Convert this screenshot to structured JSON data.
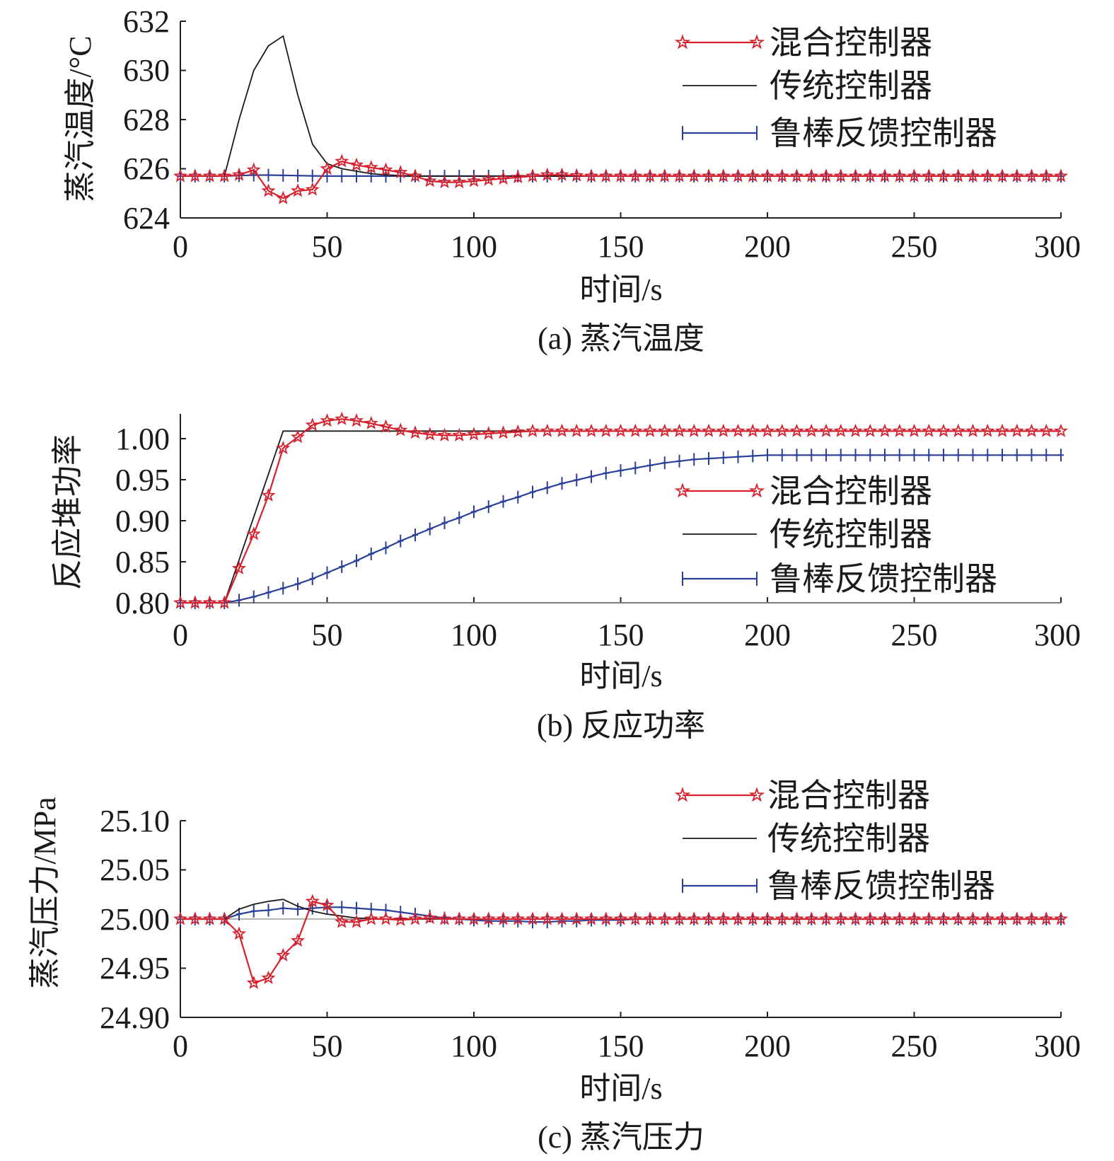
{
  "chart_data": [
    {
      "type": "line",
      "caption": "(a) 蒸汽温度",
      "xlabel": "时间/s",
      "ylabel": "蒸汽温度/°C",
      "xlim": [
        0,
        300
      ],
      "ylim": [
        624,
        632
      ],
      "xticks": [
        "0",
        "50",
        "100",
        "150",
        "200",
        "250",
        "300"
      ],
      "yticks": [
        "624",
        "626",
        "628",
        "630",
        "632"
      ],
      "legend_position": "top-right",
      "series": [
        {
          "name": "混合控制器",
          "color": "#d6202c",
          "marker": "star",
          "x": [
            0,
            5,
            10,
            15,
            20,
            25,
            30,
            35,
            40,
            45,
            50,
            55,
            60,
            65,
            70,
            75,
            80,
            85,
            90,
            95,
            100,
            105,
            110,
            115,
            120,
            125,
            130,
            135,
            140,
            145,
            150,
            155,
            160,
            165,
            170,
            175,
            180,
            185,
            190,
            195,
            200,
            205,
            210,
            215,
            220,
            225,
            230,
            235,
            240,
            245,
            250,
            255,
            260,
            265,
            270,
            275,
            280,
            285,
            290,
            295,
            300
          ],
          "y": [
            625.7,
            625.7,
            625.7,
            625.7,
            625.75,
            625.95,
            625.1,
            624.8,
            625.1,
            625.15,
            626.0,
            626.3,
            626.15,
            626.05,
            625.95,
            625.85,
            625.7,
            625.5,
            625.45,
            625.45,
            625.5,
            625.55,
            625.6,
            625.65,
            625.7,
            625.75,
            625.75,
            625.72,
            625.7,
            625.7,
            625.7,
            625.7,
            625.7,
            625.7,
            625.7,
            625.7,
            625.7,
            625.7,
            625.7,
            625.7,
            625.7,
            625.7,
            625.7,
            625.7,
            625.7,
            625.7,
            625.7,
            625.7,
            625.7,
            625.7,
            625.7,
            625.7,
            625.7,
            625.7,
            625.7,
            625.7,
            625.7,
            625.7,
            625.7,
            625.7,
            625.7
          ]
        },
        {
          "name": "传统控制器",
          "color": "#1a1a1a",
          "marker": "none",
          "x": [
            0,
            15,
            20,
            25,
            30,
            35,
            40,
            45,
            50,
            55,
            60,
            65,
            70,
            75,
            80,
            90,
            100,
            120,
            150,
            200,
            250,
            300
          ],
          "y": [
            625.7,
            625.7,
            628.0,
            630.0,
            631.0,
            631.4,
            629.0,
            627.0,
            626.2,
            626.0,
            625.9,
            625.8,
            625.75,
            625.72,
            625.7,
            625.7,
            625.7,
            625.7,
            625.7,
            625.7,
            625.7,
            625.7
          ]
        },
        {
          "name": "鲁棒反馈控制器",
          "color": "#2a3f9a",
          "marker": "plus",
          "x": [
            0,
            5,
            10,
            15,
            20,
            25,
            30,
            35,
            40,
            45,
            50,
            55,
            60,
            65,
            70,
            75,
            80,
            85,
            90,
            95,
            100,
            105,
            110,
            115,
            120,
            125,
            130,
            135,
            140,
            145,
            150,
            155,
            160,
            165,
            170,
            175,
            180,
            185,
            190,
            195,
            200,
            205,
            210,
            215,
            220,
            225,
            230,
            235,
            240,
            245,
            250,
            255,
            260,
            265,
            270,
            275,
            280,
            285,
            290,
            295,
            300
          ],
          "y": [
            625.7,
            625.7,
            625.7,
            625.7,
            625.72,
            625.74,
            625.74,
            625.73,
            625.72,
            625.71,
            625.7,
            625.7,
            625.7,
            625.7,
            625.7,
            625.7,
            625.7,
            625.7,
            625.7,
            625.7,
            625.7,
            625.7,
            625.7,
            625.7,
            625.7,
            625.7,
            625.7,
            625.7,
            625.7,
            625.7,
            625.7,
            625.7,
            625.7,
            625.7,
            625.7,
            625.7,
            625.7,
            625.7,
            625.7,
            625.7,
            625.7,
            625.7,
            625.7,
            625.7,
            625.7,
            625.7,
            625.7,
            625.7,
            625.7,
            625.7,
            625.7,
            625.7,
            625.7,
            625.7,
            625.7,
            625.7,
            625.7,
            625.7,
            625.7,
            625.7,
            625.7
          ]
        }
      ]
    },
    {
      "type": "line",
      "caption": "(b) 反应功率",
      "xlabel": "时间/s",
      "ylabel": "反应堆功率",
      "xlim": [
        0,
        300
      ],
      "ylim": [
        0.8,
        1.02
      ],
      "baseline": 0.8,
      "xticks": [
        "0",
        "50",
        "100",
        "150",
        "200",
        "250",
        "300"
      ],
      "yticks": [
        "0.80",
        "0.85",
        "0.90",
        "0.95",
        "1.00"
      ],
      "legend_position": "center-right",
      "series": [
        {
          "name": "混合控制器",
          "color": "#d6202c",
          "marker": "star",
          "x": [
            0,
            5,
            10,
            15,
            20,
            25,
            30,
            35,
            40,
            45,
            50,
            55,
            60,
            65,
            70,
            75,
            80,
            85,
            90,
            95,
            100,
            105,
            110,
            115,
            120,
            125,
            130,
            135,
            140,
            145,
            150,
            155,
            160,
            165,
            170,
            175,
            180,
            185,
            190,
            195,
            200,
            205,
            210,
            215,
            220,
            225,
            230,
            235,
            240,
            245,
            250,
            255,
            260,
            265,
            270,
            275,
            280,
            285,
            290,
            295,
            300
          ],
          "y": [
            0.8,
            0.8,
            0.8,
            0.8,
            0.84,
            0.88,
            0.925,
            0.98,
            0.993,
            1.007,
            1.012,
            1.014,
            1.012,
            1.009,
            1.005,
            1.001,
            0.998,
            0.996,
            0.995,
            0.995,
            0.996,
            0.997,
            0.998,
            0.999,
            1.0,
            1.0,
            1.0,
            1.0,
            1.0,
            1.0,
            1.0,
            1.0,
            1.0,
            1.0,
            1.0,
            1.0,
            1.0,
            1.0,
            1.0,
            1.0,
            1.0,
            1.0,
            1.0,
            1.0,
            1.0,
            1.0,
            1.0,
            1.0,
            1.0,
            1.0,
            1.0,
            1.0,
            1.0,
            1.0,
            1.0,
            1.0,
            1.0,
            1.0,
            1.0,
            1.0,
            1.0
          ]
        },
        {
          "name": "传统控制器",
          "color": "#1a1a1a",
          "marker": "none",
          "x": [
            0,
            15,
            35,
            40,
            50,
            100,
            150,
            200,
            250,
            300
          ],
          "y": [
            0.8,
            0.8,
            1.0,
            1.0,
            1.0,
            1.0,
            1.0,
            1.0,
            1.0,
            1.0
          ]
        },
        {
          "name": "鲁棒反馈控制器",
          "color": "#2a3f9a",
          "marker": "plus",
          "x": [
            0,
            5,
            10,
            15,
            20,
            25,
            30,
            35,
            40,
            45,
            50,
            55,
            60,
            65,
            70,
            75,
            80,
            85,
            90,
            95,
            100,
            105,
            110,
            115,
            120,
            125,
            130,
            135,
            140,
            145,
            150,
            155,
            160,
            165,
            170,
            175,
            180,
            185,
            190,
            195,
            200,
            205,
            210,
            215,
            220,
            225,
            230,
            235,
            240,
            245,
            250,
            255,
            260,
            265,
            270,
            275,
            280,
            285,
            290,
            295,
            300
          ],
          "y": [
            0.8,
            0.8,
            0.8,
            0.8,
            0.803,
            0.807,
            0.812,
            0.817,
            0.822,
            0.828,
            0.835,
            0.842,
            0.849,
            0.857,
            0.864,
            0.872,
            0.879,
            0.886,
            0.893,
            0.899,
            0.906,
            0.912,
            0.918,
            0.923,
            0.929,
            0.934,
            0.939,
            0.943,
            0.947,
            0.951,
            0.954,
            0.957,
            0.96,
            0.963,
            0.965,
            0.967,
            0.968,
            0.969,
            0.97,
            0.971,
            0.972,
            0.972,
            0.972,
            0.972,
            0.972,
            0.972,
            0.972,
            0.972,
            0.972,
            0.972,
            0.972,
            0.972,
            0.972,
            0.972,
            0.972,
            0.972,
            0.972,
            0.972,
            0.972,
            0.972,
            0.972
          ]
        }
      ]
    },
    {
      "type": "line",
      "caption": "(c) 蒸汽压力",
      "xlabel": "时间/s",
      "ylabel": "蒸汽压力/MPa",
      "xlim": [
        0,
        300
      ],
      "ylim": [
        24.9,
        25.1
      ],
      "baseline": 25.0,
      "xticks": [
        "0",
        "50",
        "100",
        "150",
        "200",
        "250",
        "300"
      ],
      "yticks": [
        "24.90",
        "24.95",
        "25.00",
        "25.05",
        "25.10"
      ],
      "legend_position": "top-right",
      "series": [
        {
          "name": "混合控制器",
          "color": "#d6202c",
          "marker": "star",
          "x": [
            0,
            5,
            10,
            15,
            20,
            25,
            30,
            35,
            40,
            45,
            50,
            55,
            60,
            65,
            70,
            75,
            80,
            85,
            90,
            95,
            100,
            105,
            110,
            115,
            120,
            125,
            130,
            135,
            140,
            145,
            150,
            155,
            160,
            165,
            170,
            175,
            180,
            185,
            190,
            195,
            200,
            205,
            210,
            215,
            220,
            225,
            230,
            235,
            240,
            245,
            250,
            255,
            260,
            265,
            270,
            275,
            280,
            285,
            290,
            295,
            300
          ],
          "y": [
            25.0,
            25.0,
            25.0,
            25.0,
            24.985,
            24.935,
            24.94,
            24.963,
            24.978,
            25.018,
            25.014,
            24.997,
            24.997,
            25.0,
            25.0,
            24.999,
            25.0,
            25.001,
            25.0,
            25.0,
            25.0,
            25.0,
            25.0,
            25.0,
            25.0,
            25.0,
            25.0,
            25.0,
            25.0,
            25.0,
            25.0,
            25.0,
            25.0,
            25.0,
            25.0,
            25.0,
            25.0,
            25.0,
            25.0,
            25.0,
            25.0,
            25.0,
            25.0,
            25.0,
            25.0,
            25.0,
            25.0,
            25.0,
            25.0,
            25.0,
            25.0,
            25.0,
            25.0,
            25.0,
            25.0,
            25.0,
            25.0,
            25.0,
            25.0,
            25.0,
            25.0
          ]
        },
        {
          "name": "传统控制器",
          "color": "#1a1a1a",
          "marker": "none",
          "x": [
            0,
            15,
            20,
            25,
            30,
            35,
            40,
            45,
            50,
            55,
            60,
            70,
            80,
            100,
            150,
            200,
            250,
            300
          ],
          "y": [
            25.0,
            25.0,
            25.01,
            25.015,
            25.018,
            25.02,
            25.013,
            25.008,
            25.005,
            25.003,
            25.001,
            25.0,
            25.0,
            25.0,
            25.0,
            25.0,
            25.0,
            25.0
          ]
        },
        {
          "name": "鲁棒反馈控制器",
          "color": "#2a3f9a",
          "marker": "plus",
          "x": [
            0,
            5,
            10,
            15,
            20,
            25,
            30,
            35,
            40,
            45,
            50,
            55,
            60,
            65,
            70,
            75,
            80,
            85,
            90,
            95,
            100,
            105,
            110,
            115,
            120,
            125,
            130,
            135,
            140,
            145,
            150,
            155,
            160,
            165,
            170,
            175,
            180,
            185,
            190,
            195,
            200,
            205,
            210,
            215,
            220,
            225,
            230,
            235,
            240,
            245,
            250,
            255,
            260,
            265,
            270,
            275,
            280,
            285,
            290,
            295,
            300
          ],
          "y": [
            25.0,
            25.0,
            25.0,
            25.0,
            25.005,
            25.008,
            25.009,
            25.011,
            25.01,
            25.011,
            25.012,
            25.012,
            25.011,
            25.01,
            25.009,
            25.007,
            25.005,
            25.003,
            25.001,
            25.0,
            24.999,
            24.998,
            24.998,
            24.998,
            24.997,
            24.997,
            24.998,
            24.998,
            24.999,
            24.999,
            24.999,
            25.0,
            25.0,
            25.0,
            25.0,
            25.0,
            25.0,
            25.0,
            25.0,
            25.0,
            25.0,
            25.0,
            25.0,
            25.0,
            25.0,
            25.0,
            25.0,
            25.0,
            25.0,
            25.0,
            25.0,
            25.0,
            25.0,
            25.0,
            25.0,
            25.0,
            25.0,
            25.0,
            25.0,
            25.0,
            25.0
          ]
        }
      ]
    }
  ]
}
